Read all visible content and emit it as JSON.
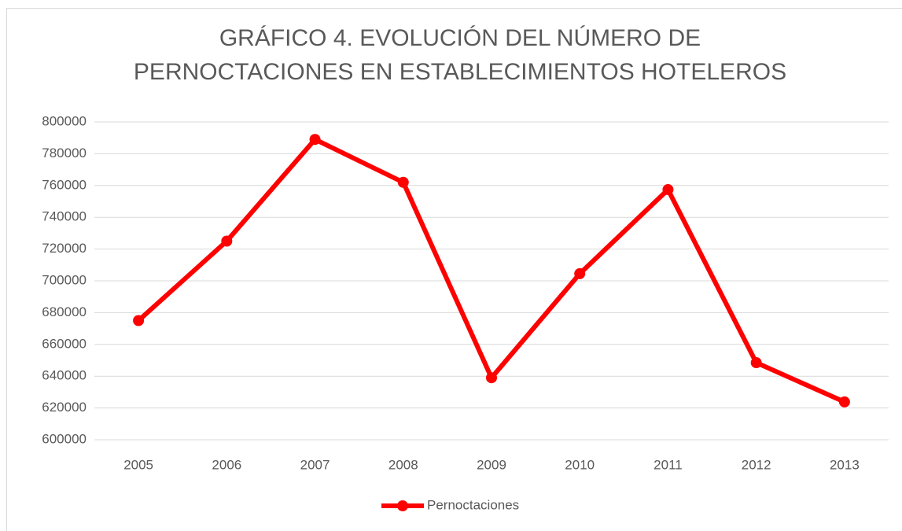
{
  "chart_data": {
    "type": "line",
    "title": [
      "GRÁFICO 4. EVOLUCIÓN DEL NÚMERO DE",
      "PERNOCTACIONES EN ESTABLECIMIENTOS HOTELEROS"
    ],
    "categories": [
      "2005",
      "2006",
      "2007",
      "2008",
      "2009",
      "2010",
      "2011",
      "2012",
      "2013"
    ],
    "series": [
      {
        "name": "Pernoctaciones",
        "color": "#ff0000",
        "values": [
          675000,
          725000,
          789000,
          762000,
          639000,
          704500,
          757400,
          648500,
          623800
        ]
      }
    ],
    "ylim": [
      600000,
      800000
    ],
    "yticks": [
      600000,
      620000,
      640000,
      660000,
      680000,
      700000,
      720000,
      740000,
      760000,
      780000,
      800000
    ],
    "grid": true,
    "legend": "bottom"
  }
}
